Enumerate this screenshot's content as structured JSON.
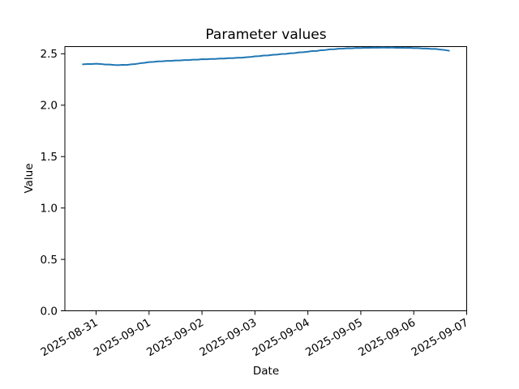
{
  "figure": {
    "background_color": "#ffffff",
    "text_color": "#000000"
  },
  "chart_data": {
    "type": "line",
    "title": "Parameter values",
    "xlabel": "Date",
    "ylabel": "Value",
    "grid": false,
    "legend": false,
    "ylim": [
      0.0,
      2.57
    ],
    "xlim_days_from_first_tick": [
      -0.59,
      7.0
    ],
    "y_ticks": [
      "0.0",
      "0.5",
      "1.0",
      "1.5",
      "2.0",
      "2.5"
    ],
    "x_tick_labels": [
      "2025-08-31",
      "2025-09-01",
      "2025-09-02",
      "2025-09-03",
      "2025-09-04",
      "2025-09-05",
      "2025-09-06",
      "2025-09-07"
    ],
    "x_tick_label_rotation_deg": 30,
    "series": [
      {
        "name": "parameter-values",
        "color": "#1f77b4",
        "x_start": "2025-08-30T18:00",
        "x_step_hours": 2,
        "values": [
          2.398,
          2.401,
          2.4,
          2.403,
          2.401,
          2.396,
          2.396,
          2.392,
          2.39,
          2.393,
          2.392,
          2.398,
          2.401,
          2.408,
          2.412,
          2.419,
          2.421,
          2.426,
          2.427,
          2.431,
          2.431,
          2.435,
          2.435,
          2.439,
          2.439,
          2.443,
          2.443,
          2.448,
          2.447,
          2.45,
          2.45,
          2.454,
          2.454,
          2.458,
          2.458,
          2.462,
          2.462,
          2.467,
          2.469,
          2.475,
          2.477,
          2.483,
          2.484,
          2.49,
          2.492,
          2.498,
          2.499,
          2.505,
          2.507,
          2.514,
          2.516,
          2.521,
          2.527,
          2.528,
          2.535,
          2.537,
          2.543,
          2.544,
          2.549,
          2.55,
          2.554,
          2.553,
          2.557,
          2.556,
          2.559,
          2.558,
          2.56,
          2.559,
          2.561,
          2.559,
          2.561,
          2.558,
          2.559,
          2.557,
          2.558,
          2.555,
          2.555,
          2.551,
          2.551,
          2.547,
          2.547,
          2.541,
          2.537,
          2.53
        ]
      }
    ]
  }
}
